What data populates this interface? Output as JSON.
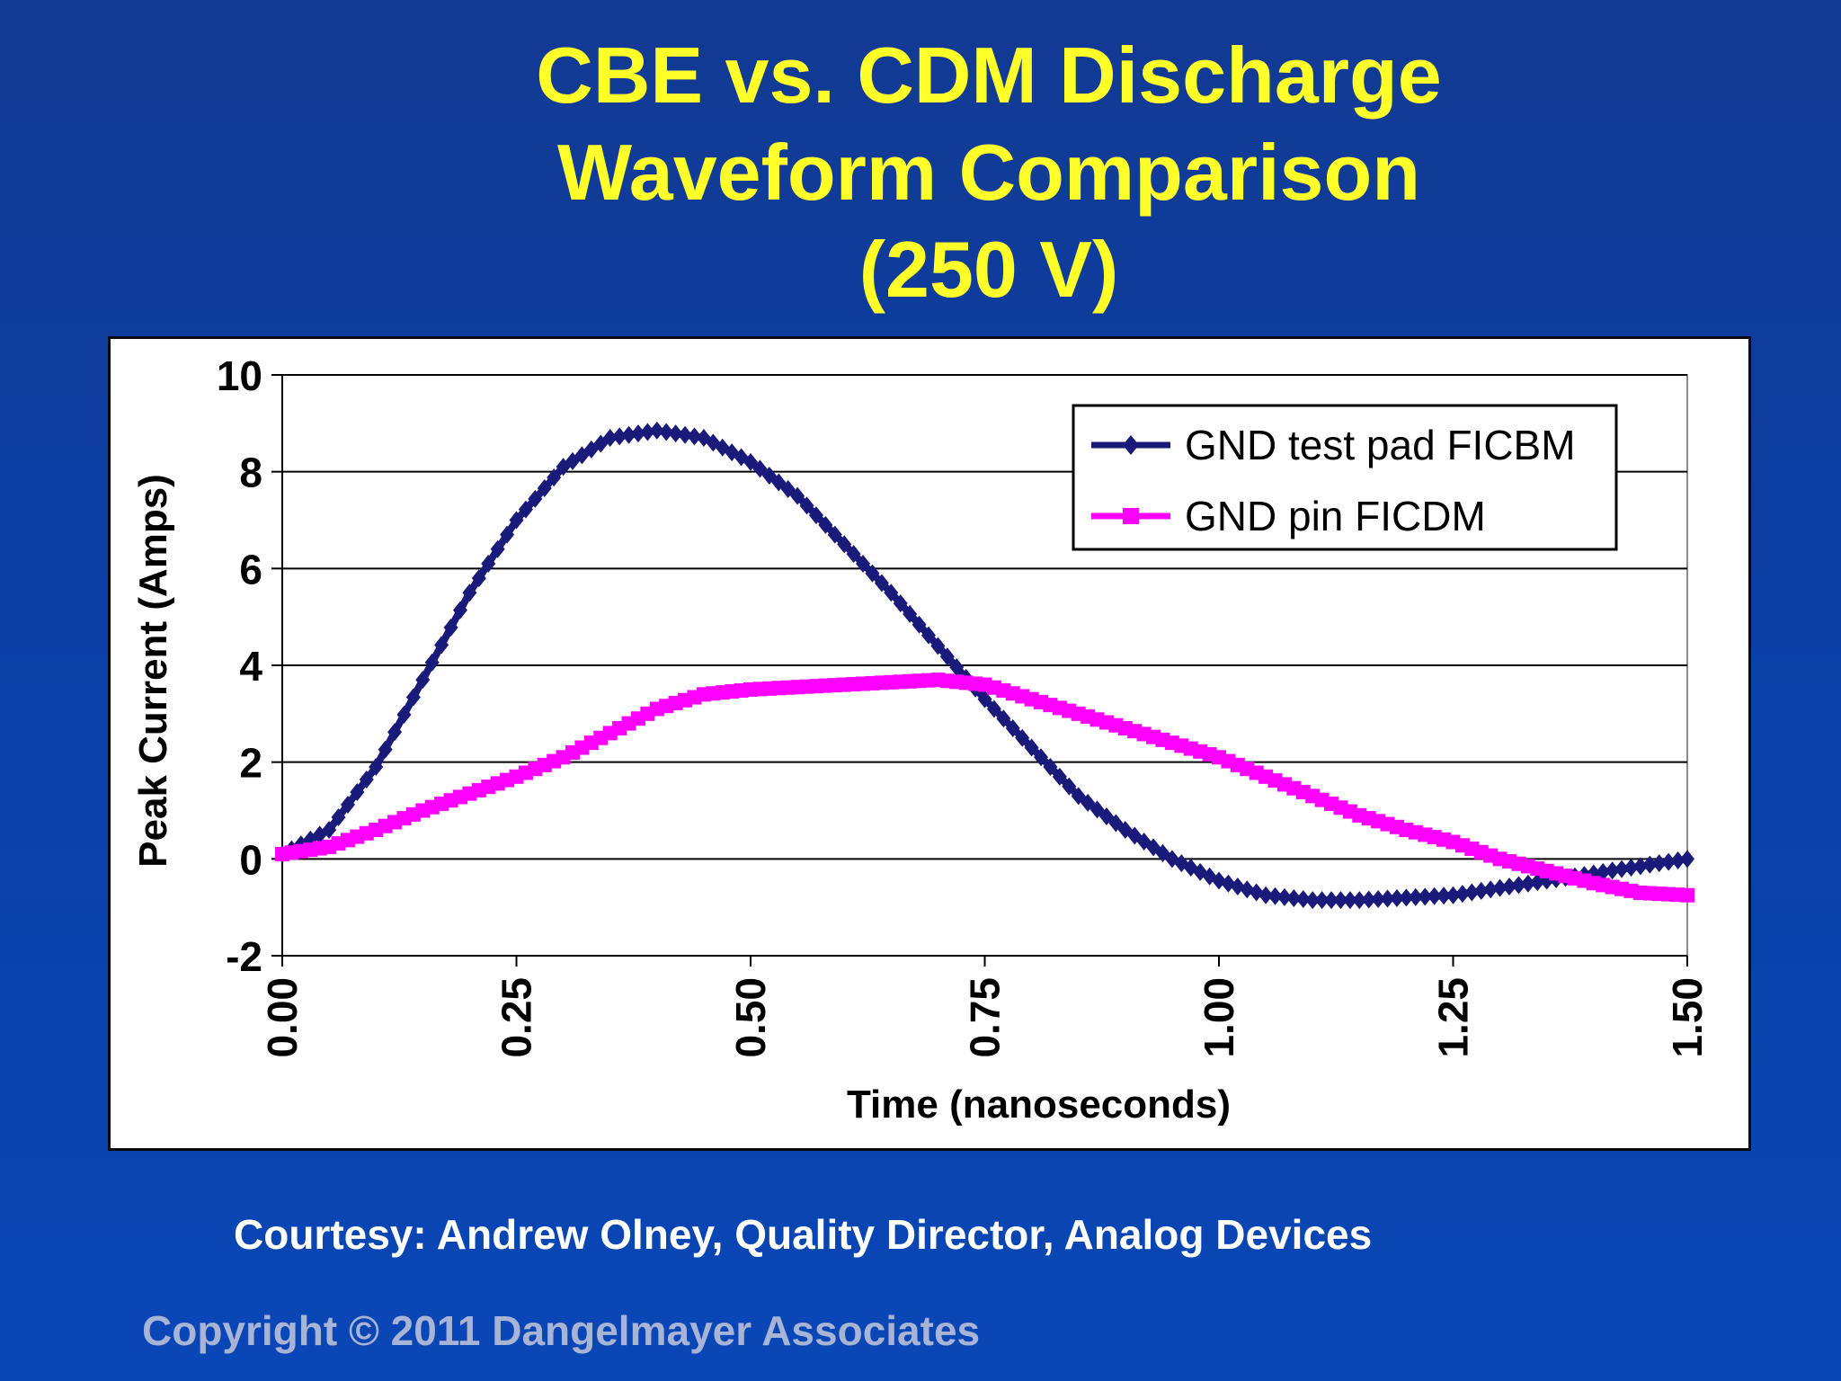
{
  "slide": {
    "title_lines": [
      "CBE vs. CDM Discharge",
      "Waveform Comparison",
      "(250 V)"
    ],
    "courtesy": "Courtesy:  Andrew Olney, Quality Director, Analog Devices",
    "copyright": "Copyright © 2011 Dangelmayer Associates"
  },
  "chart_data": {
    "type": "line",
    "title": "",
    "xlabel": "Time (nanoseconds)",
    "ylabel": "Peak Current (Amps)",
    "xlim": [
      0,
      1.5
    ],
    "ylim": [
      -2,
      10
    ],
    "x_ticks": [
      "0.00",
      "0.25",
      "0.50",
      "0.75",
      "1.00",
      "1.25",
      "1.50"
    ],
    "y_ticks": [
      "10",
      "8",
      "6",
      "4",
      "2",
      "0",
      "-2"
    ],
    "grid": "horizontal",
    "legend_position": "top-right",
    "series": [
      {
        "name": "GND test pad FICBM",
        "color": "#1a1a7a",
        "marker": "diamond",
        "points": [
          [
            0.0,
            0.1
          ],
          [
            0.05,
            0.6
          ],
          [
            0.1,
            1.9
          ],
          [
            0.15,
            3.7
          ],
          [
            0.2,
            5.5
          ],
          [
            0.25,
            7.0
          ],
          [
            0.3,
            8.1
          ],
          [
            0.35,
            8.7
          ],
          [
            0.4,
            8.85
          ],
          [
            0.45,
            8.7
          ],
          [
            0.5,
            8.2
          ],
          [
            0.55,
            7.5
          ],
          [
            0.6,
            6.5
          ],
          [
            0.65,
            5.5
          ],
          [
            0.7,
            4.4
          ],
          [
            0.75,
            3.3
          ],
          [
            0.8,
            2.3
          ],
          [
            0.85,
            1.3
          ],
          [
            0.9,
            0.6
          ],
          [
            0.95,
            0.0
          ],
          [
            1.0,
            -0.45
          ],
          [
            1.05,
            -0.75
          ],
          [
            1.1,
            -0.85
          ],
          [
            1.15,
            -0.85
          ],
          [
            1.2,
            -0.8
          ],
          [
            1.25,
            -0.75
          ],
          [
            1.3,
            -0.6
          ],
          [
            1.35,
            -0.45
          ],
          [
            1.4,
            -0.3
          ],
          [
            1.45,
            -0.15
          ],
          [
            1.5,
            0.0
          ]
        ]
      },
      {
        "name": "GND pin FICDM",
        "color": "#ff00ff",
        "marker": "square",
        "points": [
          [
            0.0,
            0.1
          ],
          [
            0.05,
            0.25
          ],
          [
            0.1,
            0.6
          ],
          [
            0.15,
            1.0
          ],
          [
            0.2,
            1.35
          ],
          [
            0.25,
            1.7
          ],
          [
            0.3,
            2.1
          ],
          [
            0.35,
            2.6
          ],
          [
            0.4,
            3.1
          ],
          [
            0.45,
            3.4
          ],
          [
            0.5,
            3.5
          ],
          [
            0.55,
            3.55
          ],
          [
            0.6,
            3.6
          ],
          [
            0.65,
            3.65
          ],
          [
            0.7,
            3.7
          ],
          [
            0.75,
            3.6
          ],
          [
            0.8,
            3.3
          ],
          [
            0.85,
            3.0
          ],
          [
            0.9,
            2.7
          ],
          [
            0.95,
            2.4
          ],
          [
            1.0,
            2.1
          ],
          [
            1.05,
            1.7
          ],
          [
            1.1,
            1.3
          ],
          [
            1.15,
            0.9
          ],
          [
            1.2,
            0.6
          ],
          [
            1.25,
            0.35
          ],
          [
            1.3,
            0.0
          ],
          [
            1.35,
            -0.25
          ],
          [
            1.4,
            -0.5
          ],
          [
            1.45,
            -0.7
          ],
          [
            1.5,
            -0.75
          ]
        ]
      }
    ]
  }
}
